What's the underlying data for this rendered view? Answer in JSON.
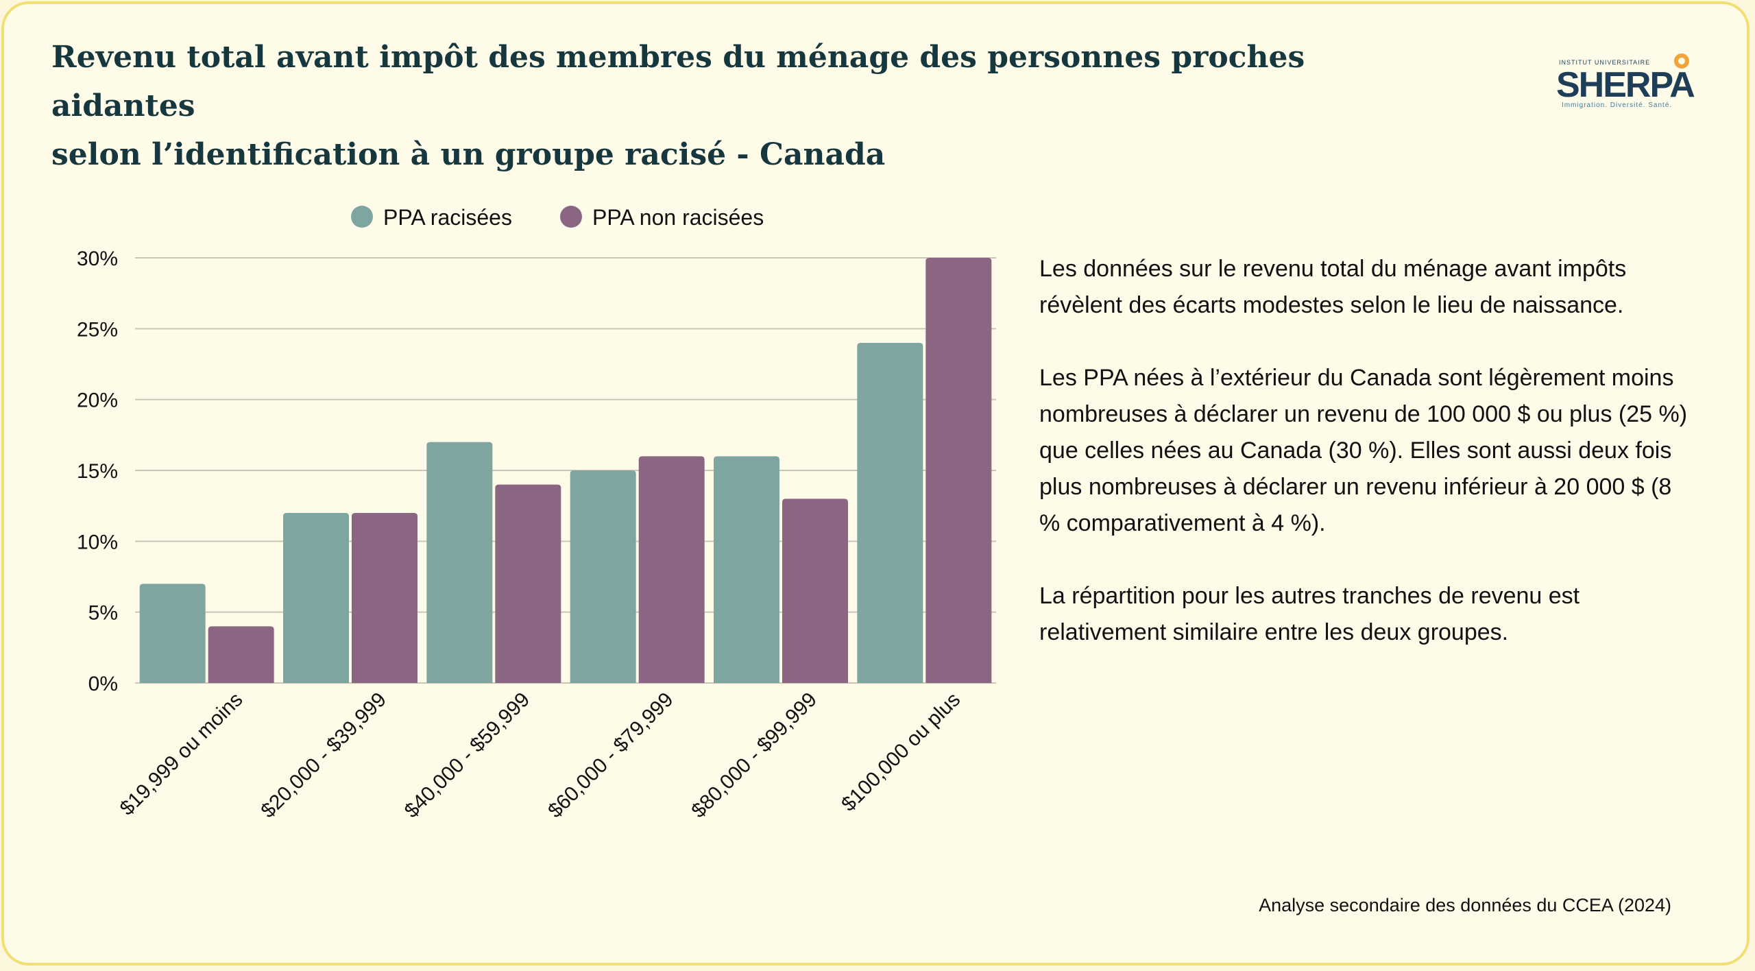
{
  "title_line1": "Revenu total avant impôt des membres du ménage des personnes proches aidantes",
  "title_line2": "selon l’identification à un groupe racisé  - Canada",
  "logo": {
    "top": "INSTITUT UNIVERSITAIRE",
    "name": "SHERPA",
    "tagline": "Immigration. Diversité. Santé."
  },
  "paragraphs": [
    "Les données sur le revenu total du ménage avant impôts révèlent des écarts modestes selon le lieu de naissance.",
    " Les PPA nées à l’extérieur du Canada sont légèrement moins nombreuses à déclarer un revenu de 100 000 $ ou plus (25 %) que celles nées au Canada (30 %). Elles sont aussi deux fois plus nombreuses à déclarer un revenu inférieur à 20 000 $ (8 % comparativement à 4 %).",
    "La répartition pour les autres tranches de revenu est relativement similaire entre les deux groupes."
  ],
  "source": "Analyse secondaire des données du CCEA (2024)",
  "colors": {
    "series1": "#7ea59f",
    "series2": "#8a6682",
    "grid": "#c9c6b8"
  },
  "chart_data": {
    "type": "bar",
    "categories": [
      "$19,999 ou moins",
      "$20,000 - $39,999",
      "$40,000 - $59,999",
      "$60,000 - $79,999",
      "$80,000 - $99,999",
      "$100,000 ou plus"
    ],
    "series": [
      {
        "name": "PPA racisées",
        "values": [
          7,
          12,
          17,
          15,
          16,
          24
        ]
      },
      {
        "name": "PPA non racisées",
        "values": [
          4,
          12,
          14,
          16,
          13,
          30
        ]
      }
    ],
    "yticks": [
      "0%",
      "5%",
      "10%",
      "15%",
      "20%",
      "25%",
      "30%"
    ],
    "ylim": [
      0,
      30
    ],
    "grid": true,
    "legend": "top"
  }
}
